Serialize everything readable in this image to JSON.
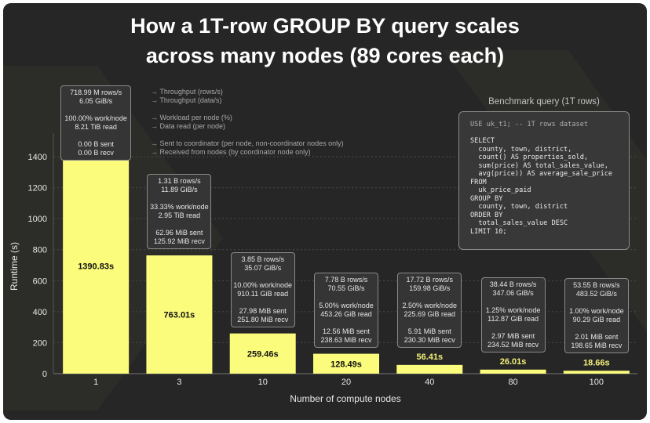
{
  "title_lines": [
    "How a 1T-row GROUP BY query scales",
    "across many nodes (89 cores each)"
  ],
  "colors": {
    "background": "#262626",
    "bar": "#fcfc7c",
    "bar_label_outside": "#f4f07a",
    "grid": "#4a4a4a",
    "text": "#ffffff"
  },
  "legend": [
    "→ Throughput (rows/s)",
    "→ Throughput (data/s)",
    "→ Workload per node (%)",
    "→ Data read (per node)",
    "→ Sent to coordinator (per node, non-coordinator nodes only)",
    "→ Received from nodes (by coordinator node only)"
  ],
  "query": {
    "title": "Benchmark query (1T rows)",
    "comment_line": "USE uk_t1; -- 1T rows dataset",
    "body": "SELECT\n  county, town, district,\n  count() AS properties_sold,\n  sum(price) AS total_sales_value,\n  avg(price)) AS average_sale_price\nFROM\n  uk_price_paid\nGROUP BY\n  county, town, district\nORDER BY\n  total_sales_value DESC\nLIMIT 10;"
  },
  "chart_data": {
    "type": "bar",
    "xlabel": "Number of compute nodes",
    "ylabel": "Runtime (s)",
    "ylim": [
      0,
      1400
    ],
    "yticks": [
      0,
      200,
      400,
      600,
      800,
      1000,
      1200,
      1400
    ],
    "grid": true,
    "categories": [
      "1",
      "3",
      "10",
      "20",
      "40",
      "80",
      "100"
    ],
    "values": [
      1390.83,
      763.01,
      259.46,
      128.49,
      56.41,
      26.01,
      18.66
    ],
    "value_labels": [
      "1390.83s",
      "763.01s",
      "259.46s",
      "128.49s",
      "56.41s",
      "26.01s",
      "18.66s"
    ],
    "annotations": [
      [
        "718.99 M rows/s",
        "6.05 GiB/s",
        "100.00% work/node",
        "8.21 TiB read",
        "0.00 B sent",
        "0.00 B recv"
      ],
      [
        "1.31 B rows/s",
        "11.89 GiB/s",
        "33.33% work/node",
        "2.95 TiB read",
        "62.96 MiB sent",
        "125.92 MiB recv"
      ],
      [
        "3.85 B rows/s",
        "35.07 GiB/s",
        "10.00% work/node",
        "910.11 GiB read",
        "27.98 MiB sent",
        "251.80 MiB recv"
      ],
      [
        "7.78 B rows/s",
        "70.55 GiB/s",
        "5.00% work/node",
        "453.26 GiB read",
        "12.56 MiB sent",
        "238.63 MiB recv"
      ],
      [
        "17.72 B rows/s",
        "159.98 GiB/s",
        "2.50% work/node",
        "225.69 GiB read",
        "5.91 MiB sent",
        "230.30 MiB recv"
      ],
      [
        "38.44 B rows/s",
        "347.06 GiB/s",
        "1.25% work/node",
        "112.87 GiB read",
        "2.97 MiB sent",
        "234.52 MiB recv"
      ],
      [
        "53.55 B rows/s",
        "483.52 GiB/s",
        "1.00% work/node",
        "90.29 GiB read",
        "2.01 MiB sent",
        "198.65 MiB recv"
      ]
    ]
  }
}
